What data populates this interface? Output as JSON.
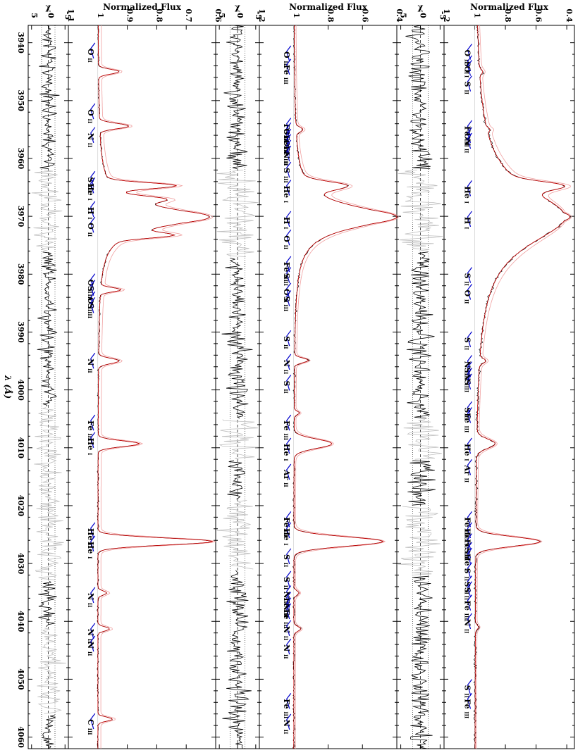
{
  "chart_data": {
    "type": "line",
    "orientation": "rotated-90",
    "x_axis": {
      "label": "λ (Å)",
      "range": [
        3937,
        4062
      ],
      "ticks": [
        3940,
        3950,
        3960,
        3970,
        3980,
        3990,
        4000,
        4010,
        4020,
        4030,
        4040,
        4050,
        4060
      ]
    },
    "panels": [
      {
        "id": "p1-flux",
        "kind": "flux",
        "ylabel": "Normalized Flux",
        "range": [
          0.35,
          1.2
        ],
        "ticks": [
          0.4,
          0.6,
          0.8,
          1.0,
          1.2
        ],
        "tick_labels": [
          "0.4",
          "0.6",
          "0.8",
          "1",
          "1.2"
        ],
        "continuum": 1.0,
        "noise": 0.006,
        "lines": [
          {
            "c": 3945.0,
            "d": 0.02,
            "w": 0.4
          },
          {
            "c": 3955.0,
            "d": 0.02,
            "w": 0.3
          },
          {
            "c": 3964.7,
            "d": 0.26,
            "w": 0.7
          },
          {
            "c": 3970.1,
            "d": 0.62,
            "w": 2.0,
            "broad": 10
          },
          {
            "c": 3995.0,
            "d": 0.04,
            "w": 0.4
          },
          {
            "c": 4009.3,
            "d": 0.12,
            "w": 0.8
          },
          {
            "c": 4026.2,
            "d": 0.42,
            "w": 0.8
          },
          {
            "c": 4041.0,
            "d": 0.02,
            "w": 0.4
          }
        ],
        "labels": [
          {
            "x": 3941.2,
            "text": "O",
            "ion": "II"
          },
          {
            "x": 3943.2,
            "text": "S",
            "ion": "II"
          },
          {
            "x": 3944.0,
            "text": "O",
            "ion": "I"
          },
          {
            "x": 3946.7,
            "text": "S",
            "ion": "II"
          },
          {
            "x": 3954.4,
            "text": "Fe",
            "ion": "III"
          },
          {
            "x": 3955.6,
            "text": "O",
            "ion": "II"
          },
          {
            "x": 3956.6,
            "text": "N",
            "ion": "II"
          },
          {
            "x": 3964.8,
            "text": "He",
            "ion": "I"
          },
          {
            "x": 3970.1,
            "text": "H",
            "ion": "I"
          },
          {
            "x": 3979.8,
            "text": "S",
            "ion": "II"
          },
          {
            "x": 3982.7,
            "text": "O",
            "ion": "II"
          },
          {
            "x": 3990.9,
            "text": "S",
            "ion": "II"
          },
          {
            "x": 3995.0,
            "text": "N",
            "ion": "II"
          },
          {
            "x": 3996.1,
            "text": "S",
            "ion": "II"
          },
          {
            "x": 3997.2,
            "text": "N",
            "ion": "II"
          },
          {
            "x": 3998.2,
            "text": "S",
            "ion": "II"
          },
          {
            "x": 4003.0,
            "text": "S",
            "ion": "II"
          },
          {
            "x": 4004.0,
            "text": "Fe",
            "ion": "III"
          },
          {
            "x": 4009.3,
            "text": "He",
            "ion": "I"
          },
          {
            "x": 4013.0,
            "text": "Ar",
            "ion": "II"
          },
          {
            "x": 4022.0,
            "text": "Fe",
            "ion": "III"
          },
          {
            "x": 4023.9,
            "text": "He",
            "ion": "I"
          },
          {
            "x": 4025.8,
            "text": "Fe",
            "ion": "III"
          },
          {
            "x": 4027.3,
            "text": "S",
            "ion": "II"
          },
          {
            "x": 4028.3,
            "text": "He",
            "ion": "I"
          },
          {
            "x": 4030.8,
            "text": "S",
            "ion": "II"
          },
          {
            "x": 4033.1,
            "text": "S",
            "ion": "II"
          },
          {
            "x": 4034.1,
            "text": "S",
            "ion": "II"
          },
          {
            "x": 4036.4,
            "text": "Fe",
            "ion": "III"
          },
          {
            "x": 4039.6,
            "text": "N",
            "ion": "II"
          },
          {
            "x": 4051.0,
            "text": "S",
            "ion": "II"
          },
          {
            "x": 4053.4,
            "text": "Fe",
            "ion": "III"
          }
        ]
      },
      {
        "id": "p1-chi",
        "kind": "chi",
        "ylabel": "χ",
        "range": [
          -6,
          6
        ],
        "ticks": [
          -5,
          0,
          5
        ],
        "tick_labels": [
          "-5",
          "0",
          "5"
        ],
        "noise": 2.2,
        "gray": [
          [
            3962,
            3976
          ],
          [
            4005,
            4012
          ],
          [
            4020,
            4032
          ]
        ]
      },
      {
        "id": "p2-flux",
        "kind": "flux",
        "ylabel": "Normalized Flux",
        "range": [
          0.4,
          1.2
        ],
        "ticks": [
          0.4,
          0.6,
          0.8,
          1.0,
          1.2
        ],
        "tick_labels": [
          "0.4",
          "0.6",
          "0.8",
          "1",
          "1.2"
        ],
        "continuum": 1.0,
        "noise": 0.004,
        "lines": [
          {
            "c": 3955.0,
            "d": 0.04,
            "w": 0.4
          },
          {
            "c": 3964.7,
            "d": 0.22,
            "w": 0.7
          },
          {
            "c": 3970.1,
            "d": 0.6,
            "w": 1.6,
            "broad": 4
          },
          {
            "c": 3994.9,
            "d": 0.08,
            "w": 0.4
          },
          {
            "c": 4004.0,
            "d": 0.03,
            "w": 0.3
          },
          {
            "c": 4009.3,
            "d": 0.22,
            "w": 0.8
          },
          {
            "c": 4026.2,
            "d": 0.52,
            "w": 0.8
          },
          {
            "c": 4035.1,
            "d": 0.03,
            "w": 0.4
          },
          {
            "c": 4041.3,
            "d": 0.04,
            "w": 0.4
          }
        ],
        "labels": [
          {
            "x": 3941.5,
            "text": "O",
            "ion": "II"
          },
          {
            "x": 3943.8,
            "text": "Fe",
            "ion": "III"
          },
          {
            "x": 3954.0,
            "text": "Fe",
            "ion": "III"
          },
          {
            "x": 3954.8,
            "text": "O",
            "ion": "II"
          },
          {
            "x": 3955.9,
            "text": "Fe",
            "ion": "III"
          },
          {
            "x": 3956.8,
            "text": "O",
            "ion": "II"
          },
          {
            "x": 3957.8,
            "text": "Fe",
            "ion": "III"
          },
          {
            "x": 3958.8,
            "text": "N",
            "ion": "II"
          },
          {
            "x": 3961.6,
            "text": "S",
            "ion": "III"
          },
          {
            "x": 3964.7,
            "text": "He",
            "ion": "I"
          },
          {
            "x": 3970.1,
            "text": "H",
            "ion": "I"
          },
          {
            "x": 3973.3,
            "text": "O",
            "ion": "II"
          },
          {
            "x": 3977.9,
            "text": "Fe",
            "ion": "III"
          },
          {
            "x": 3979.8,
            "text": "S",
            "ion": "II"
          },
          {
            "x": 3982.5,
            "text": "O",
            "ion": "II"
          },
          {
            "x": 3983.8,
            "text": "S",
            "ion": "III"
          },
          {
            "x": 3990.7,
            "text": "S",
            "ion": "II"
          },
          {
            "x": 3994.8,
            "text": "N",
            "ion": "II"
          },
          {
            "x": 3998.4,
            "text": "S",
            "ion": "II"
          },
          {
            "x": 4005.3,
            "text": "Fe",
            "ion": "III"
          },
          {
            "x": 4009.3,
            "text": "He",
            "ion": "I"
          },
          {
            "x": 4013.8,
            "text": "Ar",
            "ion": "II"
          },
          {
            "x": 4022.0,
            "text": "Fe",
            "ion": "III"
          },
          {
            "x": 4023.9,
            "text": "He",
            "ion": "I"
          },
          {
            "x": 4028.4,
            "text": "S",
            "ion": "II"
          },
          {
            "x": 4032.3,
            "text": "S",
            "ion": "II"
          },
          {
            "x": 4034.8,
            "text": "N",
            "ion": "II"
          },
          {
            "x": 4035.9,
            "text": "Fe",
            "ion": "III"
          },
          {
            "x": 4036.9,
            "text": "N",
            "ion": "II"
          },
          {
            "x": 4037.9,
            "text": "Fe",
            "ion": "III"
          },
          {
            "x": 4040.8,
            "text": "N",
            "ion": "II"
          },
          {
            "x": 4044.0,
            "text": "N",
            "ion": "II"
          },
          {
            "x": 4053.4,
            "text": "Fe",
            "ion": "III"
          },
          {
            "x": 4057.0,
            "text": "N",
            "ion": "II"
          }
        ]
      },
      {
        "id": "p2-chi",
        "kind": "chi",
        "ylabel": "χ",
        "range": [
          -6,
          6
        ],
        "ticks": [
          -5,
          0,
          5
        ],
        "tick_labels": [
          "-5",
          "0",
          "5"
        ],
        "noise": 2.2,
        "gray": [
          [
            3962,
            3977
          ],
          [
            4005,
            4012
          ],
          [
            4019,
            4031
          ]
        ]
      },
      {
        "id": "p3-flux",
        "kind": "flux",
        "ylabel": "Normalized Flux",
        "range": [
          0.6,
          1.1
        ],
        "ticks": [
          0.6,
          0.7,
          0.8,
          0.9,
          1.0,
          1.1
        ],
        "tick_labels": [
          "0.6",
          "0.7",
          "0.8",
          "0.9",
          "1",
          "1.1"
        ],
        "continuum": 1.0,
        "noise": 0.002,
        "lines": [
          {
            "c": 3945.0,
            "d": 0.07,
            "w": 0.4
          },
          {
            "c": 3954.4,
            "d": 0.1,
            "w": 0.45
          },
          {
            "c": 3964.7,
            "d": 0.22,
            "w": 0.5
          },
          {
            "c": 3967.0,
            "d": 0.12,
            "w": 0.5
          },
          {
            "c": 3970.1,
            "d": 0.38,
            "w": 1.4,
            "broad": 3.5
          },
          {
            "c": 3973.3,
            "d": 0.15,
            "w": 0.45
          },
          {
            "c": 3982.7,
            "d": 0.07,
            "w": 0.35
          },
          {
            "c": 3995.0,
            "d": 0.07,
            "w": 0.45
          },
          {
            "c": 4009.3,
            "d": 0.14,
            "w": 0.5
          },
          {
            "c": 4026.2,
            "d": 0.39,
            "w": 0.6
          },
          {
            "c": 4035.1,
            "d": 0.03,
            "w": 0.35
          },
          {
            "c": 4041.3,
            "d": 0.04,
            "w": 0.35
          },
          {
            "c": 4056.9,
            "d": 0.05,
            "w": 0.35
          }
        ],
        "labels": [
          {
            "x": 3941.0,
            "text": "O",
            "ion": "II"
          },
          {
            "x": 3951.5,
            "text": "O",
            "ion": "II"
          },
          {
            "x": 3955.6,
            "text": "N",
            "ion": "II"
          },
          {
            "x": 3963.2,
            "text": "S",
            "ion": "III"
          },
          {
            "x": 3964.3,
            "text": "He",
            "ion": "I"
          },
          {
            "x": 3968.4,
            "text": "H",
            "ion": "I"
          },
          {
            "x": 3971.1,
            "text": "O",
            "ion": "II"
          },
          {
            "x": 3980.9,
            "text": "O",
            "ion": "II"
          },
          {
            "x": 3982.0,
            "text": "S",
            "ion": "III"
          },
          {
            "x": 3984.0,
            "text": "O",
            "ion": "II"
          },
          {
            "x": 3985.0,
            "text": "S",
            "ion": "III"
          },
          {
            "x": 3994.6,
            "text": "N",
            "ion": "II"
          },
          {
            "x": 4005.3,
            "text": "Fe",
            "ion": "III"
          },
          {
            "x": 4008.3,
            "text": "He",
            "ion": "I"
          },
          {
            "x": 4023.9,
            "text": "He",
            "ion": "I"
          },
          {
            "x": 4026.2,
            "text": "He",
            "ion": "I"
          },
          {
            "x": 4035.1,
            "text": "N",
            "ion": "II"
          },
          {
            "x": 4041.3,
            "text": "N",
            "ion": "II"
          },
          {
            "x": 4043.5,
            "text": "N",
            "ion": "II"
          },
          {
            "x": 4056.9,
            "text": "C",
            "ion": "III"
          }
        ]
      },
      {
        "id": "p3-chi",
        "kind": "chi",
        "ylabel": "χ",
        "range": [
          -6,
          6
        ],
        "ticks": [
          -5,
          0,
          5
        ],
        "tick_labels": [
          "-5",
          "0",
          "5"
        ],
        "noise": 1.6,
        "gray": [
          [
            3962,
            3976
          ],
          [
            4003,
            4033
          ],
          [
            4041,
            4056
          ]
        ]
      }
    ],
    "colors": {
      "observed": "#000000",
      "model": "#cc0000",
      "model_alt": "#f0a0a0",
      "masked": "#c0c0c0",
      "bracket": "#0000cc"
    }
  }
}
